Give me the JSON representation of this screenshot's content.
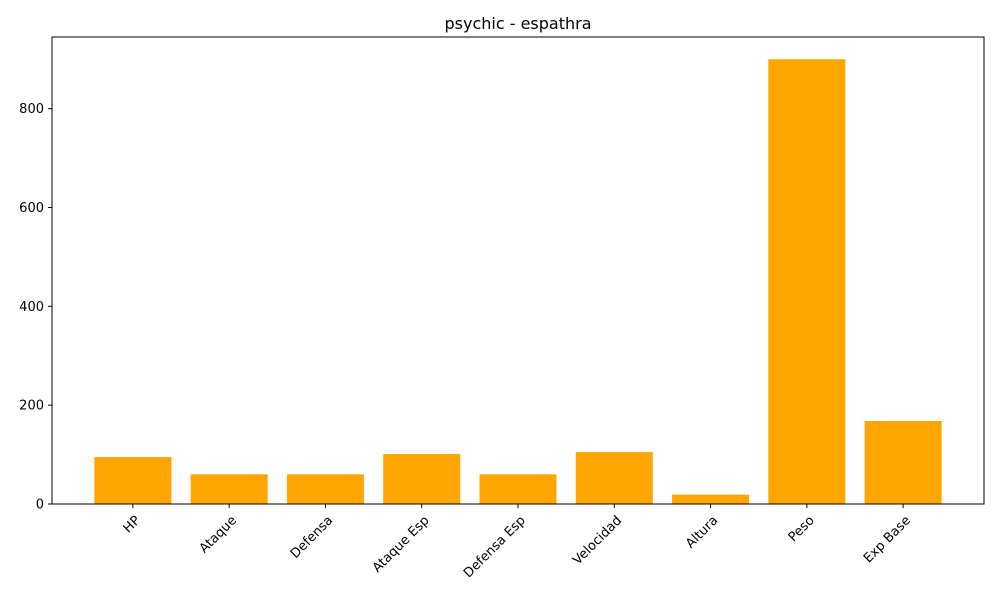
{
  "chart_data": {
    "type": "bar",
    "title": "psychic - espathra",
    "xlabel": "",
    "ylabel": "",
    "categories": [
      "HP",
      "Ataque",
      "Defensa",
      "Ataque Esp",
      "Defensa Esp",
      "Velocidad",
      "Altura",
      "Peso",
      "Exp Base"
    ],
    "values": [
      95,
      60,
      60,
      101,
      60,
      105,
      19,
      900,
      168
    ],
    "ylim": [
      0,
      945
    ],
    "yticks": [
      0,
      200,
      400,
      600,
      800
    ],
    "bar_color": "#ffa500",
    "grid": false,
    "legend": "none"
  }
}
